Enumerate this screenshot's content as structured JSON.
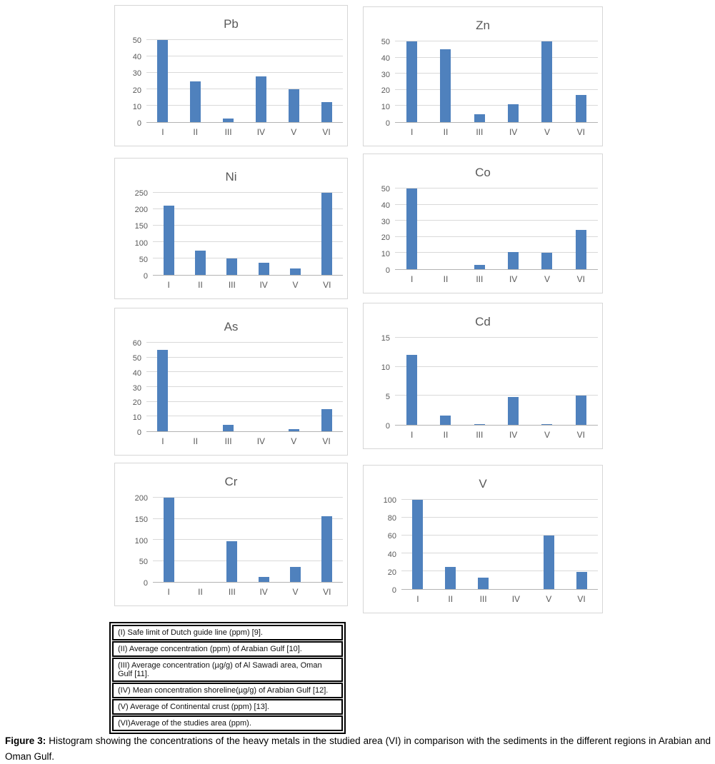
{
  "figure": {
    "caption_label": "Figure 3:",
    "caption_text": "Histogram showing the concentrations of the heavy metals in the studied area (VI) in comparison with the sediments in the different regions in Arabian and Oman Gulf."
  },
  "colors": {
    "bar": "#4f81bd",
    "gridline": "#d9d9d9",
    "axis_line": "#b3b3b3",
    "chart_text": "#595959",
    "chart_border": "#d6d6d6",
    "table_border": "#000000"
  },
  "categories": [
    "I",
    "II",
    "III",
    "IV",
    "V",
    "VI"
  ],
  "legend_table": {
    "rows": [
      "(I) Safe limit of Dutch guide line (ppm) [9].",
      "(II) Average concentration (ppm) of Arabian Gulf [10].",
      "(III) Average concentration (µg/g) of Al Sawadi area, Oman Gulf [11].",
      "(IV) Mean concentration shoreline(µg/g) of Arabian Gulf [12].",
      "(V) Average of Continental crust (ppm) [13].",
      "(VI)Average of the studies area (ppm)."
    ]
  },
  "chart_data": [
    {
      "type": "bar",
      "title": "Pb",
      "categories": [
        "I",
        "II",
        "III",
        "IV",
        "V",
        "VI"
      ],
      "values": [
        50,
        25,
        2,
        28,
        20,
        12
      ],
      "ylim": [
        0,
        50
      ],
      "ytick_step": 10,
      "grid": true,
      "legend": "none"
    },
    {
      "type": "bar",
      "title": "Zn",
      "categories": [
        "I",
        "II",
        "III",
        "IV",
        "V",
        "VI"
      ],
      "values": [
        50,
        45,
        5,
        11,
        50,
        17
      ],
      "ylim": [
        0,
        50
      ],
      "ytick_step": 10,
      "grid": true,
      "legend": "none"
    },
    {
      "type": "bar",
      "title": "Ni",
      "categories": [
        "I",
        "II",
        "III",
        "IV",
        "V",
        "VI"
      ],
      "values": [
        210,
        75,
        51,
        37,
        20,
        250
      ],
      "ylim": [
        0,
        250
      ],
      "ytick_step": 50,
      "grid": true,
      "legend": "none"
    },
    {
      "type": "bar",
      "title": "Co",
      "categories": [
        "I",
        "II",
        "III",
        "IV",
        "V",
        "VI"
      ],
      "values": [
        50,
        0,
        2.5,
        10.5,
        10,
        24.5
      ],
      "ylim": [
        0,
        50
      ],
      "ytick_step": 10,
      "grid": true,
      "legend": "none"
    },
    {
      "type": "bar",
      "title": "As",
      "categories": [
        "I",
        "II",
        "III",
        "IV",
        "V",
        "VI"
      ],
      "values": [
        55,
        0,
        4.5,
        0,
        1.5,
        15
      ],
      "ylim": [
        0,
        60
      ],
      "ytick_step": 10,
      "grid": true,
      "legend": "none"
    },
    {
      "type": "bar",
      "title": "Cd",
      "categories": [
        "I",
        "II",
        "III",
        "IV",
        "V",
        "VI"
      ],
      "values": [
        12,
        1.6,
        0.15,
        4.8,
        0.15,
        5
      ],
      "ylim": [
        0,
        15
      ],
      "ytick_step": 5,
      "grid": true,
      "legend": "none"
    },
    {
      "type": "bar",
      "title": "Cr",
      "categories": [
        "I",
        "II",
        "III",
        "IV",
        "V",
        "VI"
      ],
      "values": [
        200,
        0,
        96,
        12,
        35,
        156
      ],
      "ylim": [
        0,
        200
      ],
      "ytick_step": 50,
      "grid": true,
      "legend": "none"
    },
    {
      "type": "bar",
      "title": "V",
      "categories": [
        "I",
        "II",
        "III",
        "IV",
        "V",
        "VI"
      ],
      "values": [
        100,
        25,
        13,
        0,
        60,
        19
      ],
      "ylim": [
        0,
        100
      ],
      "ytick_step": 20,
      "grid": true,
      "legend": "none"
    }
  ]
}
